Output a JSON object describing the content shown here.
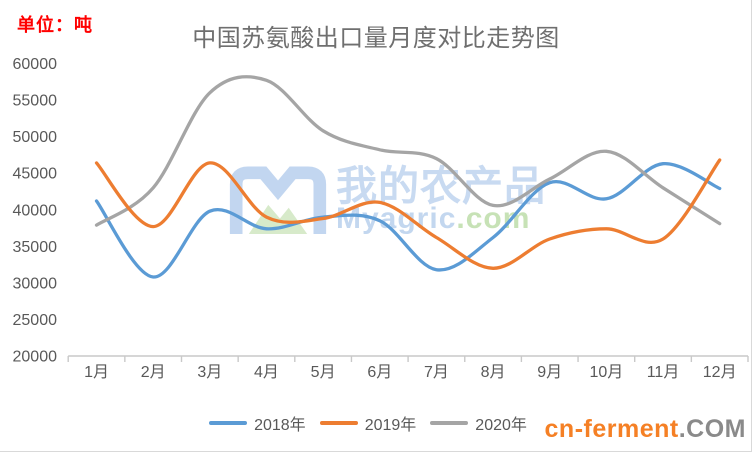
{
  "page": {
    "unit_label": "单位：吨",
    "branding": {
      "primary": "cn-ferment",
      "suffix": ".COM"
    }
  },
  "watermark": {
    "cn_text": "我的农产品",
    "en_text": "Myagric",
    "en_suffix": ".com",
    "logo": "myagric-m-mountain-logo"
  },
  "chart_data": {
    "type": "line",
    "title": "中国苏氨酸出口量月度对比走势图",
    "unit": "吨",
    "categories": [
      "1月",
      "2月",
      "3月",
      "4月",
      "5月",
      "6月",
      "7月",
      "8月",
      "9月",
      "10月",
      "11月",
      "12月"
    ],
    "series": [
      {
        "name": "2018年",
        "color": "#5B9BD5",
        "values": [
          41200,
          30800,
          39800,
          37400,
          39000,
          38500,
          31800,
          36200,
          43700,
          41500,
          46300,
          42900
        ]
      },
      {
        "name": "2019年",
        "color": "#ED7D31",
        "values": [
          46400,
          37700,
          46400,
          39000,
          38800,
          41000,
          36200,
          32000,
          36000,
          37400,
          36000,
          46800
        ]
      },
      {
        "name": "2020年",
        "color": "#A5A5A5",
        "values": [
          37900,
          43000,
          56000,
          57700,
          50800,
          48200,
          47000,
          40600,
          44200,
          48000,
          43000,
          38100
        ]
      }
    ],
    "ylim": [
      20000,
      60000
    ],
    "y_tick_step": 5000,
    "grid": false,
    "smooth": true,
    "legend_position": "bottom",
    "draw_order": [
      0,
      2,
      1
    ],
    "axis_color": "#C9C9C9",
    "label_color": "#595959"
  }
}
